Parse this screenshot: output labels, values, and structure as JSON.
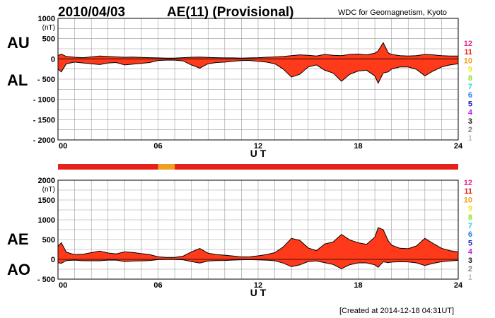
{
  "header": {
    "date": "2010/04/03",
    "title": "AE(11) (Provisional)",
    "source": "WDC for Geomagnetism, Kyoto"
  },
  "footer": {
    "created": "[Created at 2014-12-18 04:31UT]"
  },
  "station_legend": {
    "labels": [
      "12",
      "11",
      "10",
      "9",
      "8",
      "7",
      "6",
      "5",
      "4",
      "3",
      "2",
      "1"
    ],
    "colors": [
      "#e8288c",
      "#e8201a",
      "#f0a020",
      "#e8e820",
      "#90e020",
      "#20d8d8",
      "#2080f0",
      "#2020c0",
      "#c020e0",
      "#202020",
      "#808080",
      "#c0c0c0"
    ]
  },
  "chart_data": [
    {
      "type": "area",
      "name": "AU-AL panel",
      "left_labels": [
        "AU",
        "AL"
      ],
      "yunit": "(nT)",
      "xlabel": "U T",
      "xlim": [
        0,
        24
      ],
      "xticks": [
        0,
        6,
        12,
        18,
        24
      ],
      "xtick_labels": [
        "00",
        "06",
        "12",
        "18",
        "24"
      ],
      "ylim": [
        -2000,
        1000
      ],
      "yticks": [
        1000,
        500,
        0,
        -500,
        -1000,
        -1500,
        -2000
      ],
      "ytick_labels": [
        "1000",
        "500",
        "0",
        "- 500",
        "- 1000",
        "- 1500",
        "- 2000"
      ],
      "fill_color": "#ff3a1a",
      "series": [
        {
          "name": "AU",
          "x": [
            0,
            0.2,
            0.5,
            1,
            1.5,
            2,
            2.5,
            3,
            3.5,
            4,
            4.5,
            5,
            5.5,
            6,
            6.5,
            7,
            7.5,
            8,
            8.5,
            9,
            9.5,
            10,
            10.5,
            11,
            11.5,
            12,
            12.5,
            13,
            13.5,
            14,
            14.5,
            15,
            15.5,
            16,
            16.5,
            17,
            17.5,
            18,
            18.5,
            19,
            19.2,
            19.5,
            19.8,
            20,
            20.5,
            21,
            21.5,
            22,
            22.5,
            23,
            23.5,
            24
          ],
          "values": [
            80,
            120,
            60,
            40,
            30,
            50,
            70,
            60,
            50,
            40,
            45,
            35,
            30,
            25,
            20,
            20,
            30,
            40,
            45,
            35,
            30,
            25,
            25,
            20,
            25,
            30,
            40,
            50,
            60,
            80,
            100,
            90,
            70,
            110,
            90,
            80,
            110,
            120,
            100,
            140,
            200,
            400,
            150,
            110,
            80,
            70,
            80,
            110,
            100,
            80,
            70,
            70
          ]
        },
        {
          "name": "AL",
          "x": [
            0,
            0.2,
            0.5,
            1,
            1.5,
            2,
            2.5,
            3,
            3.5,
            4,
            4.5,
            5,
            5.5,
            6,
            6.5,
            7,
            7.5,
            8,
            8.5,
            9,
            9.5,
            10,
            10.5,
            11,
            11.5,
            12,
            12.5,
            13,
            13.5,
            14,
            14.5,
            15,
            15.5,
            16,
            16.5,
            17,
            17.5,
            18,
            18.5,
            19,
            19.2,
            19.5,
            19.8,
            20,
            20.5,
            21,
            21.5,
            22,
            22.5,
            23,
            23.5,
            24
          ],
          "values": [
            -250,
            -320,
            -120,
            -80,
            -100,
            -120,
            -140,
            -100,
            -90,
            -150,
            -130,
            -110,
            -90,
            -40,
            -30,
            -30,
            -50,
            -150,
            -230,
            -120,
            -90,
            -80,
            -60,
            -40,
            -40,
            -60,
            -80,
            -120,
            -250,
            -450,
            -380,
            -200,
            -150,
            -280,
            -350,
            -550,
            -380,
            -300,
            -280,
            -420,
            -600,
            -350,
            -320,
            -250,
            -200,
            -200,
            -260,
            -420,
            -300,
            -200,
            -150,
            -120
          ]
        }
      ]
    },
    {
      "type": "area",
      "name": "AE-AO panel",
      "left_labels": [
        "AE",
        "AO"
      ],
      "yunit": "(nT)",
      "xlabel": "U T",
      "xlim": [
        0,
        24
      ],
      "xticks": [
        0,
        6,
        12,
        18,
        24
      ],
      "xtick_labels": [
        "00",
        "06",
        "12",
        "18",
        "24"
      ],
      "ylim": [
        -500,
        2000
      ],
      "yticks": [
        2000,
        1500,
        1000,
        500,
        0,
        -500
      ],
      "ytick_labels": [
        "2000",
        "1500",
        "1000",
        "500",
        "0",
        "- 500"
      ],
      "fill_color": "#ff3a1a",
      "series": [
        {
          "name": "AE",
          "x": [
            0,
            0.2,
            0.5,
            1,
            1.5,
            2,
            2.5,
            3,
            3.5,
            4,
            4.5,
            5,
            5.5,
            6,
            6.5,
            7,
            7.5,
            8,
            8.5,
            9,
            9.5,
            10,
            10.5,
            11,
            11.5,
            12,
            12.5,
            13,
            13.5,
            14,
            14.5,
            15,
            15.5,
            16,
            16.5,
            17,
            17.5,
            18,
            18.5,
            19,
            19.2,
            19.5,
            19.8,
            20,
            20.5,
            21,
            21.5,
            22,
            22.5,
            23,
            23.5,
            24
          ],
          "values": [
            330,
            420,
            180,
            120,
            130,
            170,
            210,
            160,
            140,
            190,
            175,
            145,
            120,
            65,
            50,
            50,
            80,
            190,
            275,
            155,
            120,
            105,
            85,
            60,
            65,
            90,
            120,
            170,
            310,
            530,
            480,
            290,
            220,
            390,
            440,
            630,
            490,
            420,
            380,
            560,
            800,
            750,
            470,
            360,
            280,
            270,
            340,
            530,
            400,
            280,
            220,
            190
          ]
        },
        {
          "name": "AO",
          "x": [
            0,
            0.2,
            0.5,
            1,
            1.5,
            2,
            2.5,
            3,
            3.5,
            4,
            4.5,
            5,
            5.5,
            6,
            6.5,
            7,
            7.5,
            8,
            8.5,
            9,
            9.5,
            10,
            10.5,
            11,
            11.5,
            12,
            12.5,
            13,
            13.5,
            14,
            14.5,
            15,
            15.5,
            16,
            16.5,
            17,
            17.5,
            18,
            18.5,
            19,
            19.2,
            19.5,
            19.8,
            20,
            20.5,
            21,
            21.5,
            22,
            22.5,
            23,
            23.5,
            24
          ],
          "values": [
            -85,
            -100,
            -30,
            -20,
            -35,
            -35,
            -35,
            -20,
            -20,
            -55,
            -43,
            -38,
            -30,
            -8,
            -5,
            -5,
            -10,
            -55,
            -93,
            -43,
            -30,
            -28,
            -18,
            -10,
            -8,
            -15,
            -20,
            -35,
            -95,
            -185,
            -140,
            -55,
            -40,
            -85,
            -130,
            -235,
            -135,
            -90,
            -90,
            -140,
            -200,
            -60,
            -85,
            -70,
            -60,
            -65,
            -90,
            -155,
            -100,
            -60,
            -40,
            -25
          ]
        }
      ]
    }
  ],
  "station_bar": {
    "segments": [
      {
        "x_start": 0,
        "x_end": 6,
        "stations": 11
      },
      {
        "x_start": 6,
        "x_end": 7,
        "stations": 10
      },
      {
        "x_start": 7,
        "x_end": 24,
        "stations": 11
      }
    ]
  }
}
